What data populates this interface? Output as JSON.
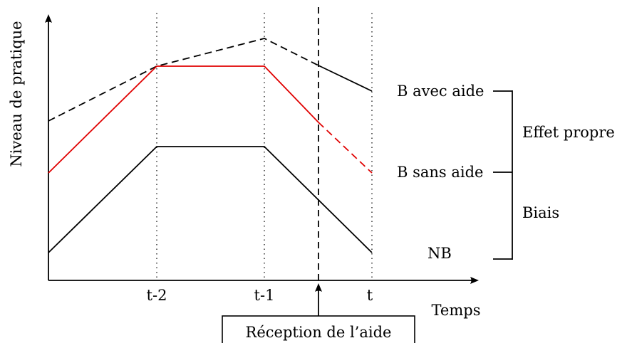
{
  "colors": {
    "axis": "#000000",
    "b_avec_aide": "#000000",
    "b_sans_aide": "#e00000",
    "nb": "#000000",
    "grid": "#000000"
  },
  "axes": {
    "y_label": "Niveau de pratique",
    "x_label": "Temps"
  },
  "ticks": [
    "t-2",
    "t-1",
    "t"
  ],
  "event_label": "Réception de l’aide",
  "series": {
    "b_avec_aide": {
      "label": "B avec aide"
    },
    "b_sans_aide": {
      "label": "B sans aide"
    },
    "nb": {
      "label": "NB"
    }
  },
  "brackets": {
    "effet_propre": "Effet propre",
    "biais": "Biais"
  }
}
